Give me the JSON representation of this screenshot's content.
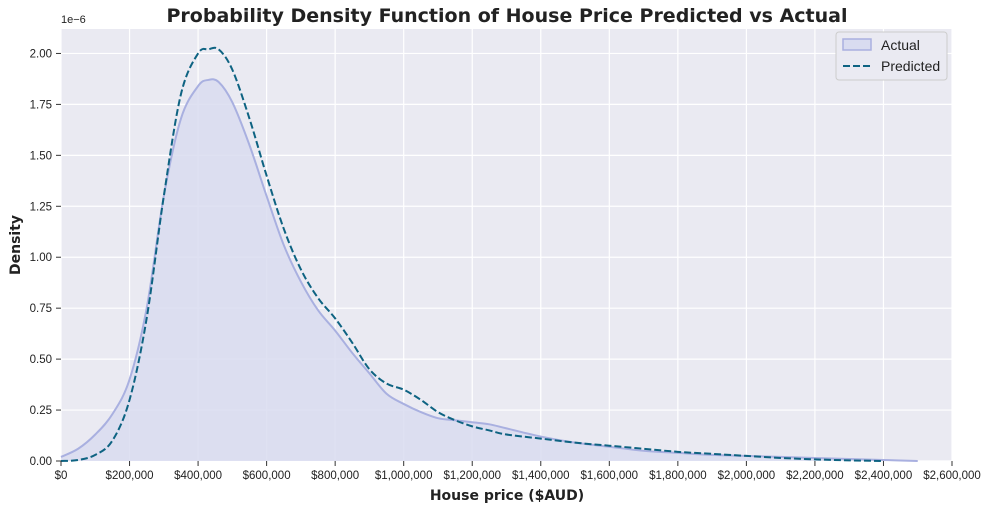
{
  "chart_data": {
    "type": "area",
    "title": "Probability Density Function of House Price Predicted vs Actual",
    "xlabel": "House price ($AUD)",
    "ylabel": "Density",
    "y_offset_label": "1e−6",
    "xlim": [
      0,
      2600000
    ],
    "ylim": [
      0,
      2.12
    ],
    "y_unit_multiplier": 1e-06,
    "grid": true,
    "legend_position": "top-right",
    "x_tick_values": [
      0,
      200000,
      400000,
      600000,
      800000,
      1000000,
      1200000,
      1400000,
      1600000,
      1800000,
      2000000,
      2200000,
      2400000,
      2600000
    ],
    "x_tick_labels": [
      "$0",
      "$200,000",
      "$400,000",
      "$600,000",
      "$800,000",
      "$1,000,000",
      "$1,200,000",
      "$1,400,000",
      "$1,600,000",
      "$1,800,000",
      "$2,000,000",
      "$2,200,000",
      "$2,400,000",
      "$2,600,000"
    ],
    "y_tick_values": [
      0,
      0.25,
      0.5,
      0.75,
      1.0,
      1.25,
      1.5,
      1.75,
      2.0
    ],
    "y_tick_labels": [
      "0.00",
      "0.25",
      "0.50",
      "0.75",
      "1.00",
      "1.25",
      "1.50",
      "1.75",
      "2.00"
    ],
    "series": [
      {
        "name": "Actual",
        "style": "filled-area",
        "color": "#a9b0e0",
        "fill": "#d9dcf0",
        "x": [
          0,
          50000,
          100000,
          150000,
          200000,
          250000,
          300000,
          350000,
          400000,
          430000,
          460000,
          500000,
          550000,
          600000,
          650000,
          700000,
          750000,
          800000,
          850000,
          900000,
          950000,
          1000000,
          1050000,
          1100000,
          1150000,
          1200000,
          1250000,
          1300000,
          1400000,
          1500000,
          1600000,
          1700000,
          1800000,
          1900000,
          2000000,
          2100000,
          2200000,
          2300000,
          2400000,
          2500000
        ],
        "y": [
          0.02,
          0.06,
          0.13,
          0.23,
          0.4,
          0.75,
          1.3,
          1.68,
          1.84,
          1.87,
          1.86,
          1.76,
          1.55,
          1.3,
          1.06,
          0.88,
          0.74,
          0.64,
          0.53,
          0.43,
          0.33,
          0.28,
          0.24,
          0.21,
          0.2,
          0.19,
          0.18,
          0.16,
          0.12,
          0.09,
          0.07,
          0.05,
          0.04,
          0.03,
          0.025,
          0.02,
          0.015,
          0.01,
          0.005,
          0.0
        ]
      },
      {
        "name": "Predicted",
        "style": "dashed-line",
        "color": "#0e6382",
        "x": [
          0,
          50000,
          100000,
          150000,
          200000,
          250000,
          300000,
          350000,
          400000,
          430000,
          460000,
          500000,
          550000,
          600000,
          650000,
          700000,
          750000,
          800000,
          850000,
          900000,
          950000,
          1000000,
          1050000,
          1100000,
          1150000,
          1200000,
          1250000,
          1300000,
          1400000,
          1500000,
          1600000,
          1700000,
          1800000,
          1900000,
          2000000,
          2100000,
          2200000,
          2300000,
          2400000
        ],
        "y": [
          0.0,
          0.005,
          0.03,
          0.1,
          0.3,
          0.7,
          1.3,
          1.8,
          2.0,
          2.02,
          2.02,
          1.92,
          1.68,
          1.4,
          1.14,
          0.94,
          0.8,
          0.7,
          0.58,
          0.45,
          0.38,
          0.35,
          0.3,
          0.24,
          0.2,
          0.17,
          0.15,
          0.13,
          0.11,
          0.09,
          0.075,
          0.06,
          0.045,
          0.035,
          0.025,
          0.015,
          0.008,
          0.003,
          0.0
        ]
      }
    ]
  }
}
